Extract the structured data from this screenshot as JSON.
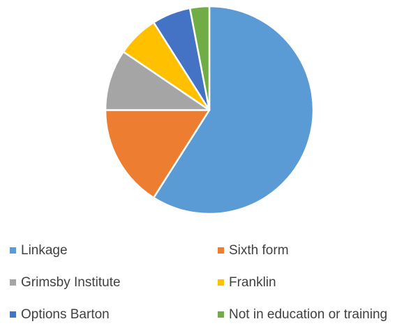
{
  "chart_data": {
    "type": "pie",
    "title": "",
    "legend_position": "bottom",
    "series": [
      {
        "categories": [
          "Linkage",
          "Sixth form",
          "Grimsby Institute",
          "Franklin",
          "Options Barton",
          "Not in education or training"
        ],
        "values": [
          59,
          16,
          9.5,
          6.5,
          6,
          3
        ],
        "colors": [
          "#5B9BD5",
          "#ED7D31",
          "#A5A5A5",
          "#FFC000",
          "#4472C4",
          "#70AD47"
        ]
      }
    ]
  },
  "legend": {
    "items": [
      {
        "label": "Linkage",
        "color": "#5B9BD5"
      },
      {
        "label": "Sixth form",
        "color": "#ED7D31"
      },
      {
        "label": "Grimsby Institute",
        "color": "#A5A5A5"
      },
      {
        "label": "Franklin",
        "color": "#FFC000"
      },
      {
        "label": "Options Barton",
        "color": "#4472C4"
      },
      {
        "label": "Not in education or training",
        "color": "#70AD47"
      }
    ]
  }
}
